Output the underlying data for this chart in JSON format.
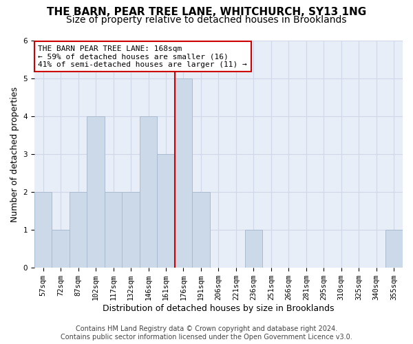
{
  "title": "THE BARN, PEAR TREE LANE, WHITCHURCH, SY13 1NG",
  "subtitle": "Size of property relative to detached houses in Brooklands",
  "xlabel": "Distribution of detached houses by size in Brooklands",
  "ylabel": "Number of detached properties",
  "categories": [
    "57sqm",
    "72sqm",
    "87sqm",
    "102sqm",
    "117sqm",
    "132sqm",
    "146sqm",
    "161sqm",
    "176sqm",
    "191sqm",
    "206sqm",
    "221sqm",
    "236sqm",
    "251sqm",
    "266sqm",
    "281sqm",
    "295sqm",
    "310sqm",
    "325sqm",
    "340sqm",
    "355sqm"
  ],
  "values": [
    2,
    1,
    2,
    4,
    2,
    2,
    4,
    3,
    5,
    2,
    0,
    0,
    1,
    0,
    0,
    0,
    0,
    0,
    0,
    0,
    1
  ],
  "bar_color": "#ccd9e8",
  "bar_edgecolor": "#aabbd0",
  "bar_width": 1.0,
  "vline_color": "#cc0000",
  "annotation_text": "THE BARN PEAR TREE LANE: 168sqm\n← 59% of detached houses are smaller (16)\n41% of semi-detached houses are larger (11) →",
  "annotation_box_edgecolor": "#cc0000",
  "annotation_box_facecolor": "#ffffff",
  "ylim": [
    0,
    6
  ],
  "yticks": [
    0,
    1,
    2,
    3,
    4,
    5,
    6
  ],
  "grid_color": "#d0d8e8",
  "bg_color": "#e8eef8",
  "footer": "Contains HM Land Registry data © Crown copyright and database right 2024.\nContains public sector information licensed under the Open Government Licence v3.0.",
  "title_fontsize": 11,
  "subtitle_fontsize": 10,
  "xlabel_fontsize": 9,
  "ylabel_fontsize": 9,
  "tick_fontsize": 7.5,
  "annotation_fontsize": 8,
  "footer_fontsize": 7
}
